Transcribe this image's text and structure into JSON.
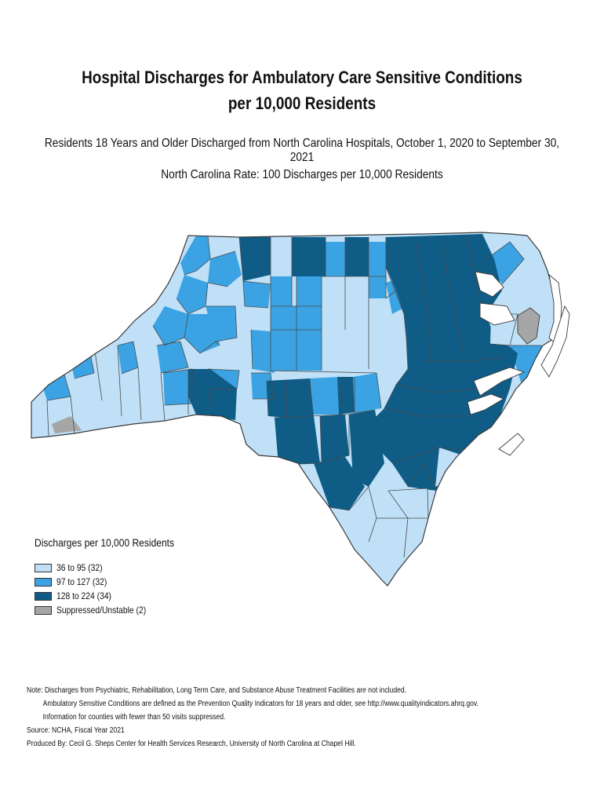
{
  "title": "Hospital Discharges for Ambulatory Care Sensitive Conditions per 10,000 Residents",
  "subtitle": "Residents 18 Years and Older Discharged from North Carolina Hospitals, October 1, 2020 to September 30, 2021",
  "state_rate": "North Carolina Rate: 100 Discharges per 10,000 Residents",
  "legend": {
    "title": "Discharges per 10,000 Residents",
    "items": [
      {
        "label": "36 to 95 (32)",
        "color": "#bfe0f7"
      },
      {
        "label": "97 to 127 (32)",
        "color": "#3ba3e3"
      },
      {
        "label": "128 to 224 (34)",
        "color": "#0f5c87"
      },
      {
        "label": "Suppressed/Unstable (2)",
        "color": "#a6a6a6"
      }
    ]
  },
  "map": {
    "outline_color": "#4a4a4a",
    "water_color": "#ffffff",
    "county_class_counts": {
      "low": 32,
      "mid": 32,
      "high": 34,
      "suppressed": 2
    }
  },
  "notes": {
    "line1": "Note: Discharges from Psychiatric, Rehabilitation, Long Term Care, and Substance Abuse Treatment Facilities are not included.",
    "line2": "Ambulatory Sensitive Conditions are defined as the Prevention Quality Indicators for 18 years and older, see http://www.qualityindicators.ahrq.gov.",
    "line3": "Information for counties with fewer than 50 visits suppressed.",
    "source": "Source: NCHA, Fiscal Year 2021",
    "produced_by": "Produced By: Cecil G. Sheps Center for Health Services Research, University of North Carolina at Chapel Hill."
  }
}
